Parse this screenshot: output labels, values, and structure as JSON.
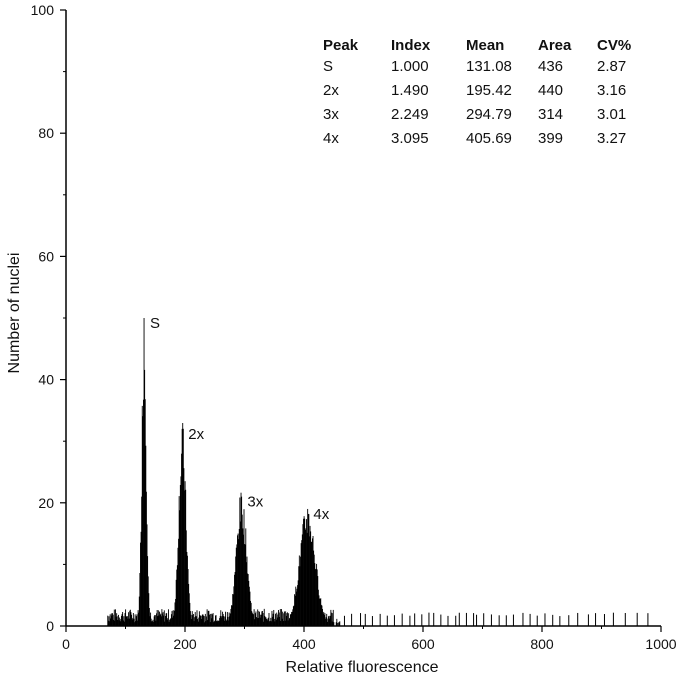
{
  "chart_data": {
    "type": "bar",
    "title": "",
    "xlabel": "Relative fluorescence",
    "ylabel": "Number of nuclei",
    "xlim": [
      0,
      1000
    ],
    "ylim": [
      0,
      100
    ],
    "xticks": [
      0,
      200,
      400,
      600,
      800,
      1000
    ],
    "yticks": [
      0,
      20,
      40,
      60,
      80,
      100
    ],
    "grid": false,
    "bar_color": "#000000",
    "peaks": [
      {
        "label": "S",
        "x": 131.08,
        "height": 50,
        "cv": 2.87
      },
      {
        "label": "2x",
        "x": 195.42,
        "height": 32,
        "cv": 3.16
      },
      {
        "label": "3x",
        "x": 294.79,
        "height": 21,
        "cv": 3.01
      },
      {
        "label": "4x",
        "x": 405.69,
        "height": 19,
        "cv": 3.27
      }
    ],
    "background_range": [
      70,
      460
    ],
    "sparse_events_x": [
      468,
      480,
      495,
      503,
      515,
      528,
      540,
      552,
      565,
      578,
      586,
      598,
      610,
      618,
      630,
      642,
      655,
      661,
      673,
      685,
      690,
      702,
      715,
      728,
      740,
      752,
      768,
      780,
      792,
      805,
      818,
      830,
      845,
      860,
      878,
      890,
      905,
      920,
      940,
      960,
      978
    ],
    "table": {
      "headers": [
        "Peak",
        "Index",
        "Mean",
        "Area",
        "CV%"
      ],
      "rows": [
        [
          "S",
          "1.000",
          "131.08",
          "436",
          "2.87"
        ],
        [
          "2x",
          "1.490",
          "195.42",
          "440",
          "3.16"
        ],
        [
          "3x",
          "2.249",
          "294.79",
          "314",
          "3.01"
        ],
        [
          "4x",
          "3.095",
          "405.69",
          "399",
          "3.27"
        ]
      ]
    }
  }
}
